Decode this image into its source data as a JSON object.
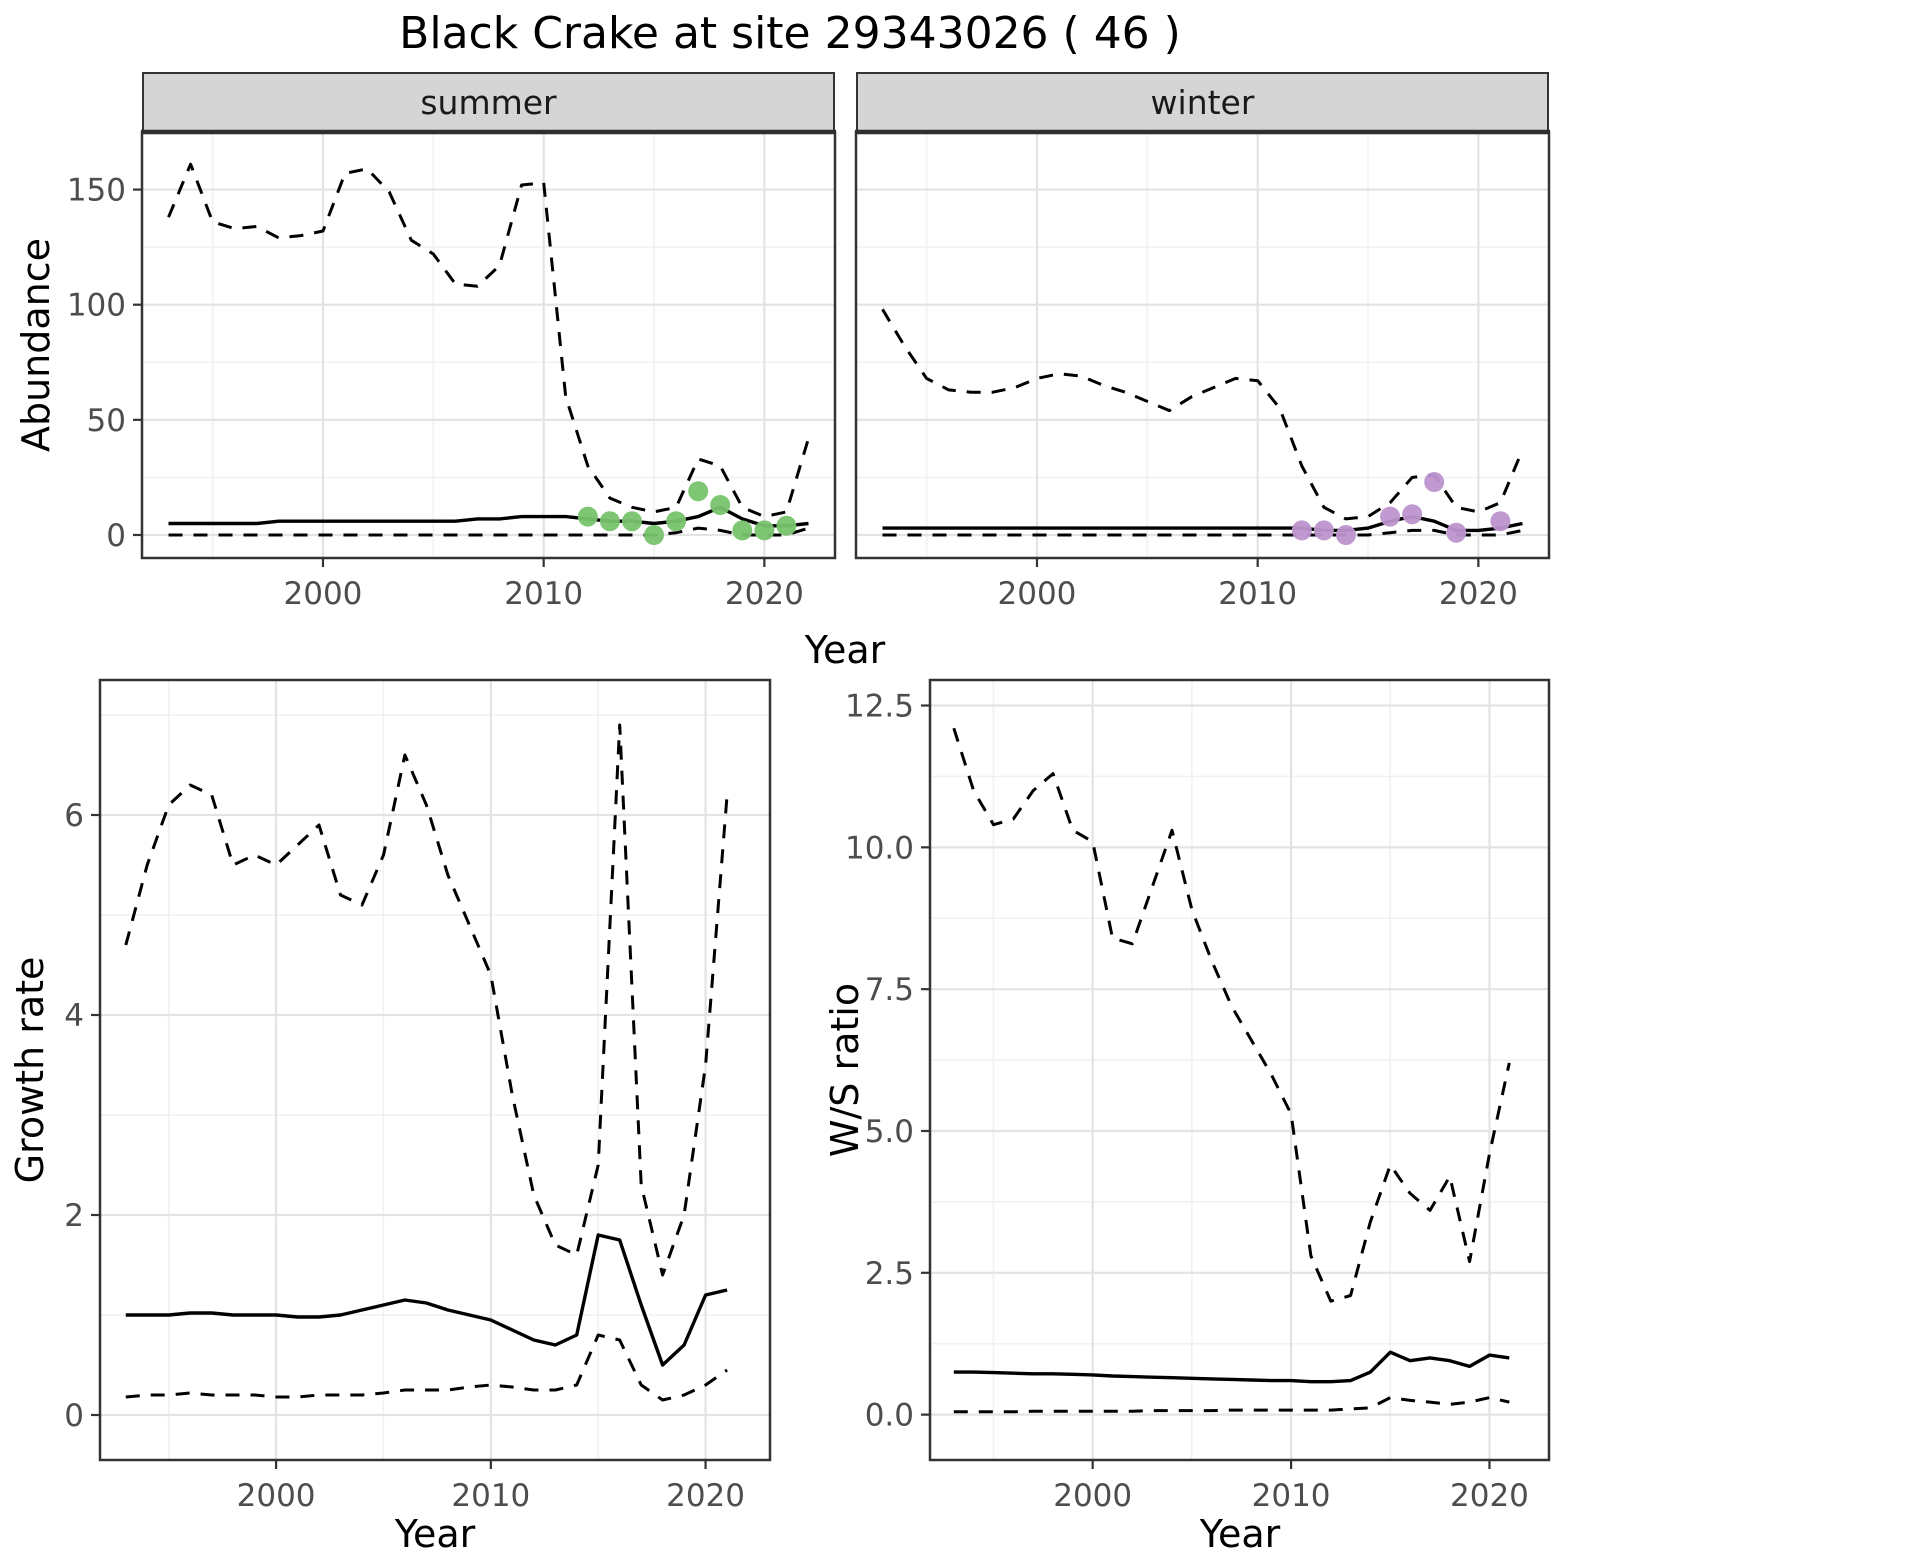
{
  "title": "Black Crake at site 29343026 ( 46 )",
  "facets": {
    "summer": "summer",
    "winter": "winter"
  },
  "axis_labels": {
    "abundance": "Abundance",
    "year": "Year",
    "growth": "Growth rate",
    "ws": "W/S ratio"
  },
  "colors": {
    "line": "#000000",
    "grid_major": "#e3e3e3",
    "grid_minor": "#f1f1f1",
    "border": "#333333",
    "strip_bg": "#d5d5d5",
    "summer_points": "#77c36d",
    "winter_points": "#bd94ce",
    "tick_text": "#4d4d4d"
  },
  "chart_data": [
    {
      "id": "abundance_summer",
      "type": "line",
      "facet": "summer",
      "title": "Black Crake abundance (summer) with dashed credible interval",
      "xlabel": "Year",
      "ylabel": "Abundance",
      "xlim": [
        1991.8,
        2023.2
      ],
      "ylim": [
        -10,
        175
      ],
      "xticks": [
        2000,
        2010,
        2020
      ],
      "xtick_labels": [
        "2000",
        "2010",
        "2020"
      ],
      "yticks": [
        0,
        50,
        100,
        150
      ],
      "ytick_labels": [
        "0",
        "50",
        "100",
        "150"
      ],
      "x": [
        1993,
        1994,
        1995,
        1996,
        1997,
        1998,
        1999,
        2000,
        2001,
        2002,
        2003,
        2004,
        2005,
        2006,
        2007,
        2008,
        2009,
        2010,
        2011,
        2012,
        2013,
        2014,
        2015,
        2016,
        2017,
        2018,
        2019,
        2020,
        2021,
        2022
      ],
      "series": [
        {
          "name": "upper_ci",
          "style": "dashed",
          "values": [
            138,
            161,
            136,
            133,
            134,
            129,
            130,
            132,
            157,
            159,
            149,
            128,
            122,
            109,
            108,
            117,
            152,
            153,
            60,
            30,
            16,
            12,
            10,
            12,
            33,
            30,
            12,
            8,
            10,
            42
          ]
        },
        {
          "name": "median",
          "style": "solid",
          "values": [
            5,
            5,
            5,
            5,
            5,
            6,
            6,
            6,
            6,
            6,
            6,
            6,
            6,
            6,
            7,
            7,
            8,
            8,
            8,
            7,
            6,
            6,
            5,
            6,
            8,
            12,
            7,
            4,
            4,
            5
          ]
        },
        {
          "name": "lower_ci",
          "style": "dashed",
          "values": [
            0,
            0,
            0,
            0,
            0,
            0,
            0,
            0,
            0,
            0,
            0,
            0,
            0,
            0,
            0,
            0,
            0,
            0,
            0,
            0,
            0,
            0,
            0,
            1,
            3,
            2,
            0,
            0,
            0,
            3
          ]
        }
      ],
      "points": {
        "name": "observed_counts",
        "color": "#77c36d",
        "x": [
          2012,
          2013,
          2014,
          2015,
          2016,
          2017,
          2018,
          2019,
          2020,
          2021
        ],
        "y": [
          8,
          6,
          6,
          0,
          6,
          19,
          13,
          2,
          2,
          4
        ]
      }
    },
    {
      "id": "abundance_winter",
      "type": "line",
      "facet": "winter",
      "title": "Black Crake abundance (winter) with dashed credible interval",
      "xlabel": "Year",
      "ylabel": "Abundance",
      "xlim": [
        1991.8,
        2023.2
      ],
      "ylim": [
        -10,
        175
      ],
      "xticks": [
        2000,
        2010,
        2020
      ],
      "xtick_labels": [
        "2000",
        "2010",
        "2020"
      ],
      "yticks": [
        0,
        50,
        100,
        150
      ],
      "ytick_labels": [
        "0",
        "50",
        "100",
        "150"
      ],
      "x": [
        1993,
        1994,
        1995,
        1996,
        1997,
        1998,
        1999,
        2000,
        2001,
        2002,
        2003,
        2004,
        2005,
        2006,
        2007,
        2008,
        2009,
        2010,
        2011,
        2012,
        2013,
        2014,
        2015,
        2016,
        2017,
        2018,
        2019,
        2020,
        2021,
        2022
      ],
      "series": [
        {
          "name": "upper_ci",
          "style": "dashed",
          "values": [
            98,
            82,
            68,
            63,
            62,
            62,
            64,
            68,
            70,
            69,
            65,
            62,
            58,
            54,
            60,
            64,
            68,
            67,
            55,
            30,
            12,
            7,
            8,
            14,
            25,
            26,
            12,
            10,
            14,
            37
          ]
        },
        {
          "name": "median",
          "style": "solid",
          "values": [
            3,
            3,
            3,
            3,
            3,
            3,
            3,
            3,
            3,
            3,
            3,
            3,
            3,
            3,
            3,
            3,
            3,
            3,
            3,
            3,
            2,
            2,
            3,
            6,
            8,
            6,
            2,
            2,
            3,
            5
          ]
        },
        {
          "name": "lower_ci",
          "style": "dashed",
          "values": [
            0,
            0,
            0,
            0,
            0,
            0,
            0,
            0,
            0,
            0,
            0,
            0,
            0,
            0,
            0,
            0,
            0,
            0,
            0,
            0,
            0,
            0,
            0,
            1,
            2,
            2,
            0,
            0,
            0,
            2
          ]
        }
      ],
      "points": {
        "name": "observed_counts",
        "color": "#bd94ce",
        "x": [
          2012,
          2013,
          2014,
          2016,
          2017,
          2018,
          2019,
          2021
        ],
        "y": [
          2,
          2,
          0,
          8,
          9,
          23,
          1,
          6
        ]
      }
    },
    {
      "id": "growth_rate",
      "type": "line",
      "title": "Growth rate with dashed credible interval",
      "xlabel": "Year",
      "ylabel": "Growth rate",
      "xlim": [
        1991.8,
        2023
      ],
      "ylim": [
        -0.45,
        7.35
      ],
      "xticks": [
        2000,
        2010,
        2020
      ],
      "xtick_labels": [
        "2000",
        "2010",
        "2020"
      ],
      "yticks": [
        0,
        2,
        4,
        6
      ],
      "ytick_labels": [
        "0",
        "2",
        "4",
        "6"
      ],
      "x": [
        1993,
        1994,
        1995,
        1996,
        1997,
        1998,
        1999,
        2000,
        2001,
        2002,
        2003,
        2004,
        2005,
        2006,
        2007,
        2008,
        2009,
        2010,
        2011,
        2012,
        2013,
        2014,
        2015,
        2016,
        2017,
        2018,
        2019,
        2020,
        2021
      ],
      "series": [
        {
          "name": "upper_ci",
          "style": "dashed",
          "values": [
            4.7,
            5.5,
            6.1,
            6.3,
            6.2,
            5.5,
            5.6,
            5.5,
            5.7,
            5.9,
            5.2,
            5.1,
            5.6,
            6.6,
            6.1,
            5.4,
            4.9,
            4.4,
            3.2,
            2.2,
            1.7,
            1.6,
            2.5,
            6.9,
            2.3,
            1.4,
            2.0,
            3.5,
            6.2
          ]
        },
        {
          "name": "median",
          "style": "solid",
          "values": [
            1.0,
            1.0,
            1.0,
            1.02,
            1.02,
            1.0,
            1.0,
            1.0,
            0.98,
            0.98,
            1.0,
            1.05,
            1.1,
            1.15,
            1.12,
            1.05,
            1.0,
            0.95,
            0.85,
            0.75,
            0.7,
            0.8,
            1.8,
            1.75,
            1.1,
            0.5,
            0.7,
            1.2,
            1.25
          ]
        },
        {
          "name": "lower_ci",
          "style": "dashed",
          "values": [
            0.18,
            0.2,
            0.2,
            0.22,
            0.2,
            0.2,
            0.2,
            0.18,
            0.18,
            0.2,
            0.2,
            0.2,
            0.22,
            0.25,
            0.25,
            0.25,
            0.28,
            0.3,
            0.28,
            0.25,
            0.25,
            0.3,
            0.8,
            0.75,
            0.3,
            0.15,
            0.2,
            0.3,
            0.45
          ]
        }
      ]
    },
    {
      "id": "ws_ratio",
      "type": "line",
      "title": "Winter/Summer ratio with dashed credible interval",
      "xlabel": "Year",
      "ylabel": "W/S ratio",
      "xlim": [
        1991.8,
        2023
      ],
      "ylim": [
        -0.8,
        12.95
      ],
      "xticks": [
        2000,
        2010,
        2020
      ],
      "xtick_labels": [
        "2000",
        "2010",
        "2020"
      ],
      "yticks": [
        0,
        2.5,
        5,
        7.5,
        10,
        12.5
      ],
      "ytick_labels": [
        "0.0",
        "2.5",
        "5.0",
        "7.5",
        "10.0",
        "12.5"
      ],
      "x": [
        1993,
        1994,
        1995,
        1996,
        1997,
        1998,
        1999,
        2000,
        2001,
        2002,
        2003,
        2004,
        2005,
        2006,
        2007,
        2008,
        2009,
        2010,
        2011,
        2012,
        2013,
        2014,
        2015,
        2016,
        2017,
        2018,
        2019,
        2020,
        2021
      ],
      "series": [
        {
          "name": "upper_ci",
          "style": "dashed",
          "values": [
            12.1,
            11.0,
            10.4,
            10.5,
            11.0,
            11.3,
            10.3,
            10.1,
            8.4,
            8.3,
            9.3,
            10.3,
            8.9,
            8.0,
            7.2,
            6.6,
            6.0,
            5.3,
            2.8,
            2.0,
            2.1,
            3.4,
            4.4,
            3.9,
            3.6,
            4.2,
            2.7,
            4.6,
            6.2
          ]
        },
        {
          "name": "median",
          "style": "solid",
          "values": [
            0.75,
            0.75,
            0.74,
            0.73,
            0.72,
            0.72,
            0.71,
            0.7,
            0.68,
            0.67,
            0.66,
            0.65,
            0.64,
            0.63,
            0.62,
            0.61,
            0.6,
            0.6,
            0.58,
            0.58,
            0.6,
            0.75,
            1.1,
            0.95,
            1.0,
            0.95,
            0.85,
            1.05,
            1.0
          ]
        },
        {
          "name": "lower_ci",
          "style": "dashed",
          "values": [
            0.05,
            0.05,
            0.05,
            0.05,
            0.06,
            0.06,
            0.06,
            0.06,
            0.06,
            0.06,
            0.07,
            0.07,
            0.07,
            0.07,
            0.08,
            0.08,
            0.08,
            0.08,
            0.08,
            0.08,
            0.1,
            0.12,
            0.3,
            0.25,
            0.22,
            0.18,
            0.22,
            0.3,
            0.22
          ]
        }
      ]
    }
  ]
}
